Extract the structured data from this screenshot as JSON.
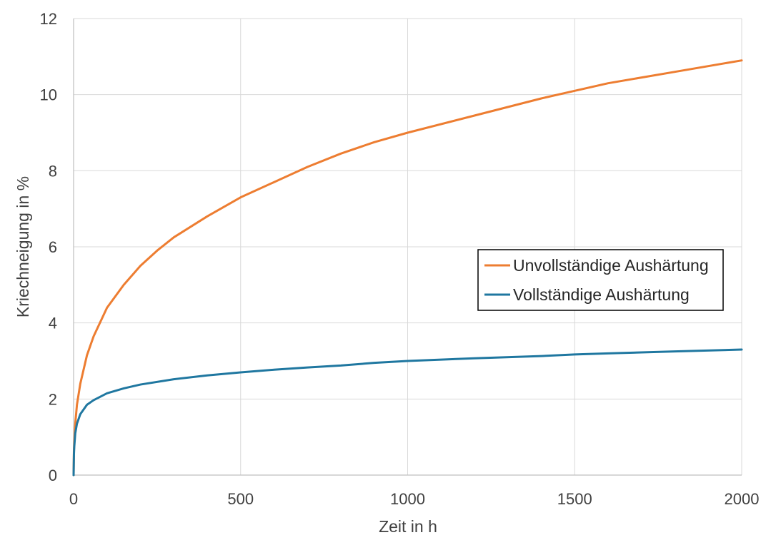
{
  "chart_data": {
    "type": "line",
    "xlabel": "Zeit in h",
    "ylabel": "Kriechneigung in %",
    "xlim": [
      0,
      2000
    ],
    "ylim": [
      0,
      12
    ],
    "xticks": [
      "0",
      "500",
      "1000",
      "1500",
      "2000"
    ],
    "yticks": [
      "0",
      "2",
      "4",
      "6",
      "8",
      "10",
      "12"
    ],
    "grid": true,
    "legend_position": "center-right",
    "series": [
      {
        "name": "Unvollständige Aushärtung",
        "color": "#ED7D31",
        "points": [
          [
            0,
            0
          ],
          [
            1,
            0.63
          ],
          [
            2,
            0.89
          ],
          [
            5,
            1.35
          ],
          [
            10,
            1.85
          ],
          [
            20,
            2.4
          ],
          [
            40,
            3.15
          ],
          [
            60,
            3.65
          ],
          [
            100,
            4.4
          ],
          [
            150,
            5.0
          ],
          [
            200,
            5.5
          ],
          [
            250,
            5.9
          ],
          [
            300,
            6.25
          ],
          [
            400,
            6.8
          ],
          [
            500,
            7.3
          ],
          [
            600,
            7.7
          ],
          [
            700,
            8.1
          ],
          [
            800,
            8.45
          ],
          [
            900,
            8.75
          ],
          [
            1000,
            9.0
          ],
          [
            1200,
            9.45
          ],
          [
            1400,
            9.9
          ],
          [
            1500,
            10.1
          ],
          [
            1600,
            10.3
          ],
          [
            1800,
            10.6
          ],
          [
            2000,
            10.9
          ]
        ]
      },
      {
        "name": "Vollständige Aushärtung",
        "color": "#1F77A0",
        "points": [
          [
            0,
            0
          ],
          [
            1,
            0.55
          ],
          [
            2,
            0.75
          ],
          [
            5,
            1.1
          ],
          [
            10,
            1.35
          ],
          [
            20,
            1.6
          ],
          [
            40,
            1.85
          ],
          [
            60,
            1.97
          ],
          [
            100,
            2.15
          ],
          [
            150,
            2.28
          ],
          [
            200,
            2.38
          ],
          [
            300,
            2.52
          ],
          [
            400,
            2.62
          ],
          [
            500,
            2.7
          ],
          [
            600,
            2.77
          ],
          [
            700,
            2.83
          ],
          [
            800,
            2.88
          ],
          [
            900,
            2.95
          ],
          [
            1000,
            3.0
          ],
          [
            1200,
            3.07
          ],
          [
            1400,
            3.13
          ],
          [
            1500,
            3.17
          ],
          [
            1600,
            3.2
          ],
          [
            1800,
            3.25
          ],
          [
            2000,
            3.3
          ]
        ]
      }
    ]
  }
}
